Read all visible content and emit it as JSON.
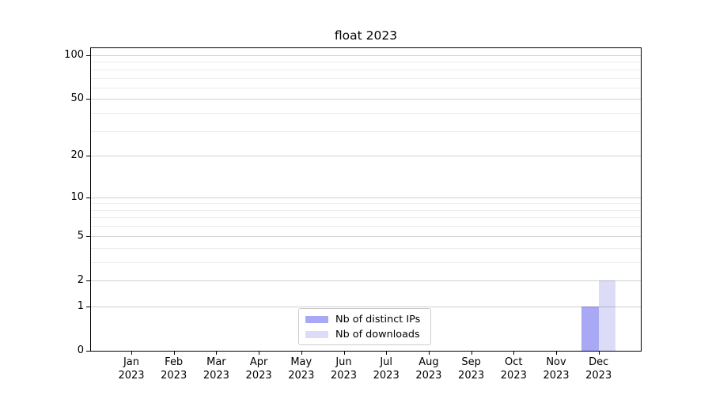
{
  "chart_data": {
    "type": "bar",
    "title": "float 2023",
    "categories": [
      {
        "month": "Jan",
        "year": "2023"
      },
      {
        "month": "Feb",
        "year": "2023"
      },
      {
        "month": "Mar",
        "year": "2023"
      },
      {
        "month": "Apr",
        "year": "2023"
      },
      {
        "month": "May",
        "year": "2023"
      },
      {
        "month": "Jun",
        "year": "2023"
      },
      {
        "month": "Jul",
        "year": "2023"
      },
      {
        "month": "Aug",
        "year": "2023"
      },
      {
        "month": "Sep",
        "year": "2023"
      },
      {
        "month": "Oct",
        "year": "2023"
      },
      {
        "month": "Nov",
        "year": "2023"
      },
      {
        "month": "Dec",
        "year": "2023"
      }
    ],
    "series": [
      {
        "name": "Nb of distinct IPs",
        "color": "#a8a8f5",
        "values": [
          0,
          0,
          0,
          0,
          0,
          0,
          0,
          0,
          0,
          0,
          0,
          1
        ]
      },
      {
        "name": "Nb of downloads",
        "color": "#dcdcf8",
        "values": [
          0,
          0,
          0,
          0,
          0,
          0,
          0,
          0,
          0,
          0,
          0,
          2
        ]
      }
    ],
    "yscale": "log1p",
    "ylim": [
      0,
      100
    ],
    "yticks_major": [
      0,
      1,
      2,
      5,
      10,
      20,
      50,
      100
    ],
    "yticks_minor": [
      3,
      4,
      6,
      7,
      8,
      9,
      30,
      40,
      60,
      70,
      80,
      90
    ],
    "grid": "horizontal-major-and-minor",
    "legend_position": "lower-center",
    "colors": {
      "grid_major": "rgba(0,0,0,0.18)",
      "grid_minor": "rgba(0,0,0,0.07)",
      "axis": "#000000",
      "legend_border": "#cccccc",
      "background": "#ffffff"
    }
  }
}
